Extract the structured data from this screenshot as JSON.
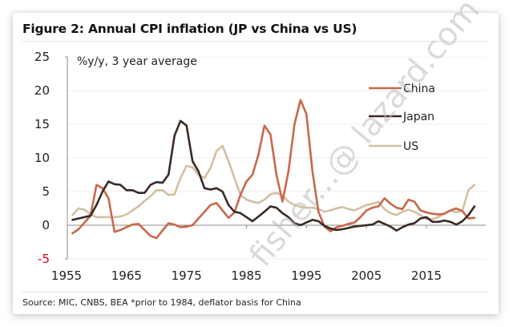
{
  "figure": {
    "title": "Figure 2: Annual CPI inflation (JP vs China vs US)",
    "source": "Source: MIC, CNBS, BEA *prior to 1984, deflator basis for China",
    "watermark": "fisher...@ lazard.com"
  },
  "chart_data": {
    "type": "line",
    "title": "Figure 2: Annual CPI inflation (JP vs China vs US)",
    "unit_label": "%y/y, 3 year average",
    "xlabel": "",
    "ylabel": "%y/y, 3 year average",
    "xlim": [
      1955,
      2024
    ],
    "ylim": [
      -5,
      25
    ],
    "yticks": [
      25,
      20,
      15,
      10,
      5,
      0,
      -5
    ],
    "xticks": [
      1955,
      1965,
      1975,
      1985,
      1995,
      2005,
      2015
    ],
    "negative_tick_color": "#e3001b",
    "grid": true,
    "legend_position": "upper-right",
    "x": [
      1956,
      1957,
      1958,
      1959,
      1960,
      1961,
      1962,
      1963,
      1964,
      1965,
      1966,
      1967,
      1968,
      1969,
      1970,
      1971,
      1972,
      1973,
      1974,
      1975,
      1976,
      1977,
      1978,
      1979,
      1980,
      1981,
      1982,
      1983,
      1984,
      1985,
      1986,
      1987,
      1988,
      1989,
      1990,
      1991,
      1992,
      1993,
      1994,
      1995,
      1996,
      1997,
      1998,
      1999,
      2000,
      2001,
      2002,
      2003,
      2004,
      2005,
      2006,
      2007,
      2008,
      2009,
      2010,
      2011,
      2012,
      2013,
      2014,
      2015,
      2016,
      2017,
      2018,
      2019,
      2020,
      2021,
      2022,
      2023
    ],
    "series": [
      {
        "name": "China",
        "color": "#c8684a",
        "values": [
          -1.2,
          -0.6,
          0.4,
          1.4,
          6.0,
          5.5,
          4.0,
          -1.0,
          -0.7,
          -0.3,
          0.1,
          0.2,
          -0.7,
          -1.6,
          -1.9,
          -0.8,
          0.3,
          0.1,
          -0.3,
          -0.2,
          0.0,
          1.0,
          2.0,
          3.0,
          3.3,
          2.2,
          1.1,
          1.9,
          4.5,
          6.5,
          7.5,
          10.5,
          14.8,
          13.5,
          7.5,
          3.5,
          8.0,
          15.0,
          18.6,
          16.5,
          8.0,
          2.0,
          -0.2,
          -0.9,
          -0.3,
          -0.1,
          0.2,
          0.4,
          1.2,
          2.2,
          2.6,
          2.8,
          4.0,
          3.2,
          2.6,
          2.4,
          3.8,
          3.5,
          2.2,
          1.9,
          1.7,
          1.6,
          1.7,
          2.2,
          2.5,
          2.1,
          1.0,
          1.1
        ]
      },
      {
        "name": "Japan",
        "color": "#3a2a24",
        "values": [
          0.8,
          1.0,
          1.2,
          1.4,
          3.0,
          5.0,
          6.5,
          6.1,
          6.0,
          5.2,
          5.2,
          4.8,
          4.8,
          6.0,
          6.4,
          6.3,
          7.5,
          13.3,
          15.5,
          14.8,
          9.5,
          8.0,
          5.5,
          5.3,
          5.5,
          5.0,
          3.0,
          2.0,
          1.8,
          1.2,
          0.6,
          1.3,
          2.0,
          2.8,
          2.6,
          1.8,
          1.2,
          0.3,
          0.0,
          0.4,
          0.8,
          0.6,
          -0.1,
          -0.5,
          -0.7,
          -0.6,
          -0.4,
          -0.2,
          -0.1,
          0.0,
          0.1,
          0.6,
          0.2,
          -0.2,
          -0.8,
          -0.3,
          0.1,
          0.3,
          1.0,
          1.2,
          0.5,
          0.5,
          0.7,
          0.5,
          0.1,
          0.6,
          1.5,
          2.8
        ]
      },
      {
        "name": "US",
        "color": "#d2c0a2",
        "values": [
          1.5,
          2.5,
          2.3,
          1.6,
          1.2,
          1.2,
          1.2,
          1.2,
          1.3,
          1.6,
          2.2,
          2.8,
          3.6,
          4.3,
          5.2,
          5.2,
          4.5,
          4.6,
          7.0,
          8.8,
          8.6,
          7.5,
          7.0,
          8.5,
          11.0,
          11.8,
          9.5,
          7.0,
          4.5,
          3.8,
          3.5,
          3.3,
          3.8,
          4.6,
          4.8,
          4.4,
          3.5,
          3.0,
          2.7,
          2.6,
          2.6,
          2.4,
          2.0,
          2.2,
          2.5,
          2.7,
          2.4,
          2.2,
          2.6,
          3.0,
          3.2,
          3.5,
          2.4,
          1.8,
          1.5,
          2.0,
          2.3,
          2.0,
          1.5,
          0.9,
          0.9,
          1.2,
          1.8,
          2.2,
          1.9,
          2.2,
          5.2,
          6.0
        ]
      }
    ]
  }
}
